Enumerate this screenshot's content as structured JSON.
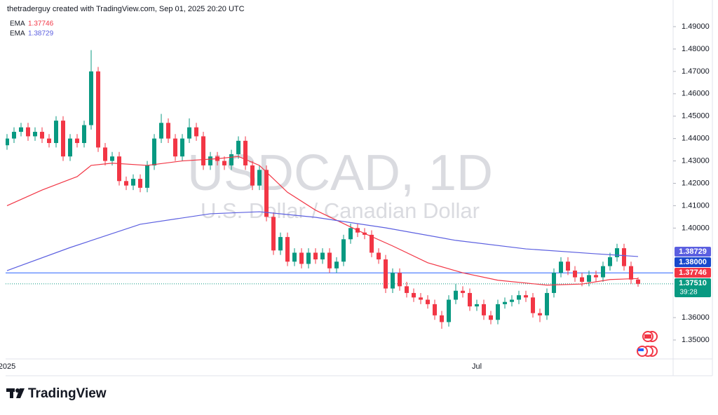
{
  "header": {
    "attribution": "thetraderguy created with TradingView.com, Sep 01, 2025 20:20 UTC"
  },
  "chart_data": {
    "type": "candlestick",
    "title": "USDCAD, 1D",
    "subtitle": "U.S. Dollar / Canadian Dollar",
    "categories": [
      "2025",
      null,
      null,
      null,
      null,
      null,
      null,
      null,
      null,
      null,
      null,
      null,
      null,
      null,
      null,
      null,
      null,
      null,
      null,
      null,
      null,
      null,
      null,
      null,
      null,
      null,
      null,
      null,
      null,
      null,
      null,
      null,
      null,
      null,
      null,
      null,
      null,
      null,
      null,
      null,
      null,
      null,
      null,
      null,
      null,
      null,
      null,
      null,
      null,
      null,
      null,
      null,
      null,
      null,
      null,
      null,
      null,
      null,
      null,
      null,
      null,
      null,
      null,
      null,
      null,
      null,
      null,
      "Jul",
      null,
      null,
      null,
      null,
      null,
      null,
      null,
      null,
      null,
      null,
      null,
      null,
      null,
      null,
      null,
      null,
      null,
      null,
      null,
      null,
      null,
      null,
      null
    ],
    "open": [
      1.437,
      1.44,
      1.443,
      1.445,
      1.441,
      1.443,
      1.44,
      1.438,
      1.448,
      1.432,
      1.44,
      1.438,
      1.446,
      1.47,
      1.436,
      1.43,
      1.432,
      1.421,
      1.419,
      1.422,
      1.418,
      1.428,
      1.44,
      1.447,
      1.44,
      1.432,
      1.44,
      1.445,
      1.441,
      1.428,
      1.432,
      1.43,
      1.428,
      1.433,
      1.439,
      1.428,
      1.419,
      1.426,
      1.405,
      1.39,
      1.396,
      1.385,
      1.389,
      1.384,
      1.389,
      1.386,
      1.389,
      1.382,
      1.385,
      1.395,
      1.4,
      1.398,
      1.397,
      1.389,
      1.386,
      1.373,
      1.38,
      1.374,
      1.371,
      1.369,
      1.368,
      1.366,
      1.361,
      1.358,
      1.368,
      1.372,
      1.371,
      1.365,
      1.366,
      1.361,
      1.359,
      1.366,
      1.367,
      1.368,
      1.37,
      1.369,
      1.362,
      1.361,
      1.371,
      1.38,
      1.385,
      1.381,
      1.378,
      1.376,
      1.379,
      1.378,
      1.383,
      1.387,
      1.391,
      1.383,
      1.377
    ],
    "high": [
      1.442,
      1.445,
      1.447,
      1.447,
      1.445,
      1.445,
      1.442,
      1.45,
      1.45,
      1.442,
      1.442,
      1.448,
      1.4795,
      1.472,
      1.438,
      1.434,
      1.434,
      1.423,
      1.424,
      1.424,
      1.43,
      1.442,
      1.451,
      1.449,
      1.442,
      1.442,
      1.449,
      1.447,
      1.443,
      1.434,
      1.434,
      1.432,
      1.435,
      1.441,
      1.441,
      1.43,
      1.428,
      1.428,
      1.407,
      1.398,
      1.398,
      1.391,
      1.391,
      1.391,
      1.391,
      1.391,
      1.391,
      1.387,
      1.397,
      1.402,
      1.402,
      1.4,
      1.399,
      1.391,
      1.388,
      1.382,
      1.382,
      1.376,
      1.373,
      1.371,
      1.37,
      1.368,
      1.363,
      1.37,
      1.375,
      1.374,
      1.373,
      1.368,
      1.368,
      1.363,
      1.368,
      1.369,
      1.37,
      1.372,
      1.372,
      1.371,
      1.364,
      1.373,
      1.382,
      1.387,
      1.387,
      1.383,
      1.38,
      1.381,
      1.381,
      1.385,
      1.389,
      1.393,
      1.393,
      1.385,
      1.378
    ],
    "low": [
      1.435,
      1.438,
      1.441,
      1.439,
      1.439,
      1.438,
      1.436,
      1.436,
      1.43,
      1.43,
      1.436,
      1.436,
      1.444,
      1.434,
      1.428,
      1.428,
      1.419,
      1.417,
      1.417,
      1.416,
      1.416,
      1.426,
      1.438,
      1.438,
      1.43,
      1.43,
      1.438,
      1.439,
      1.426,
      1.426,
      1.428,
      1.426,
      1.426,
      1.431,
      1.426,
      1.417,
      1.417,
      1.403,
      1.388,
      1.388,
      1.383,
      1.383,
      1.382,
      1.382,
      1.384,
      1.384,
      1.38,
      1.38,
      1.383,
      1.393,
      1.396,
      1.395,
      1.387,
      1.384,
      1.371,
      1.371,
      1.372,
      1.369,
      1.367,
      1.366,
      1.364,
      1.359,
      1.355,
      1.356,
      1.366,
      1.369,
      1.363,
      1.363,
      1.359,
      1.357,
      1.357,
      1.364,
      1.365,
      1.366,
      1.367,
      1.36,
      1.358,
      1.359,
      1.369,
      1.378,
      1.379,
      1.376,
      1.374,
      1.374,
      1.376,
      1.376,
      1.381,
      1.385,
      1.381,
      1.375,
      1.3738
    ],
    "close": [
      1.44,
      1.443,
      1.445,
      1.441,
      1.443,
      1.44,
      1.438,
      1.448,
      1.432,
      1.44,
      1.438,
      1.446,
      1.47,
      1.436,
      1.43,
      1.432,
      1.421,
      1.419,
      1.422,
      1.418,
      1.428,
      1.44,
      1.447,
      1.44,
      1.432,
      1.44,
      1.445,
      1.441,
      1.428,
      1.432,
      1.43,
      1.428,
      1.433,
      1.439,
      1.428,
      1.419,
      1.426,
      1.405,
      1.39,
      1.396,
      1.385,
      1.389,
      1.384,
      1.389,
      1.386,
      1.389,
      1.382,
      1.385,
      1.395,
      1.4,
      1.398,
      1.397,
      1.389,
      1.386,
      1.373,
      1.38,
      1.374,
      1.371,
      1.369,
      1.368,
      1.366,
      1.361,
      1.358,
      1.368,
      1.372,
      1.371,
      1.365,
      1.366,
      1.361,
      1.359,
      1.366,
      1.367,
      1.368,
      1.37,
      1.369,
      1.362,
      1.361,
      1.371,
      1.38,
      1.385,
      1.381,
      1.378,
      1.376,
      1.379,
      1.378,
      1.383,
      1.387,
      1.391,
      1.383,
      1.377,
      1.3751
    ],
    "up_color": "#089981",
    "down_color": "#f23645",
    "ylim": [
      1.3406,
      1.5019
    ],
    "yticks": [
      {
        "value": 1.49,
        "label": "1.49000"
      },
      {
        "value": 1.48,
        "label": "1.48000"
      },
      {
        "value": 1.47,
        "label": "1.47000"
      },
      {
        "value": 1.46,
        "label": "1.46000"
      },
      {
        "value": 1.45,
        "label": "1.45000"
      },
      {
        "value": 1.44,
        "label": "1.44000"
      },
      {
        "value": 1.43,
        "label": "1.43000"
      },
      {
        "value": 1.42,
        "label": "1.42000"
      },
      {
        "value": 1.41,
        "label": "1.41000"
      },
      {
        "value": 1.4,
        "label": "1.40000"
      },
      {
        "value": 1.36,
        "label": "1.36000"
      },
      {
        "value": 1.35,
        "label": "1.35000"
      }
    ],
    "indicators": [
      {
        "name": "EMA",
        "color": "#f23645",
        "value_label": "1.37746",
        "x": [
          0,
          5,
          10,
          12,
          15,
          20,
          25,
          30,
          33,
          36,
          40,
          44,
          50,
          55,
          60,
          65,
          70,
          77,
          82,
          86,
          90
        ],
        "values": [
          1.41,
          1.417,
          1.423,
          1.428,
          1.429,
          1.428,
          1.43,
          1.431,
          1.432,
          1.428,
          1.416,
          1.408,
          1.399,
          1.392,
          1.3845,
          1.38,
          1.3767,
          1.3745,
          1.375,
          1.377,
          1.37746
        ]
      },
      {
        "name": "EMA",
        "color": "#5b5fe0",
        "value_label": "1.38729",
        "x": [
          0,
          9,
          19,
          29,
          36,
          44,
          54,
          64,
          74,
          84,
          90
        ],
        "values": [
          1.381,
          1.3913,
          1.4017,
          1.4064,
          1.4073,
          1.4048,
          1.4001,
          1.3945,
          1.3907,
          1.3885,
          1.38729
        ]
      }
    ],
    "price_line": {
      "value": 1.38,
      "label": "1.38000",
      "color": "#2962ff"
    },
    "last_price": {
      "value": 1.3751,
      "label": "1.37510",
      "countdown": "39:28",
      "color": "#089981"
    }
  },
  "footer": {
    "brand": "TradingView"
  }
}
